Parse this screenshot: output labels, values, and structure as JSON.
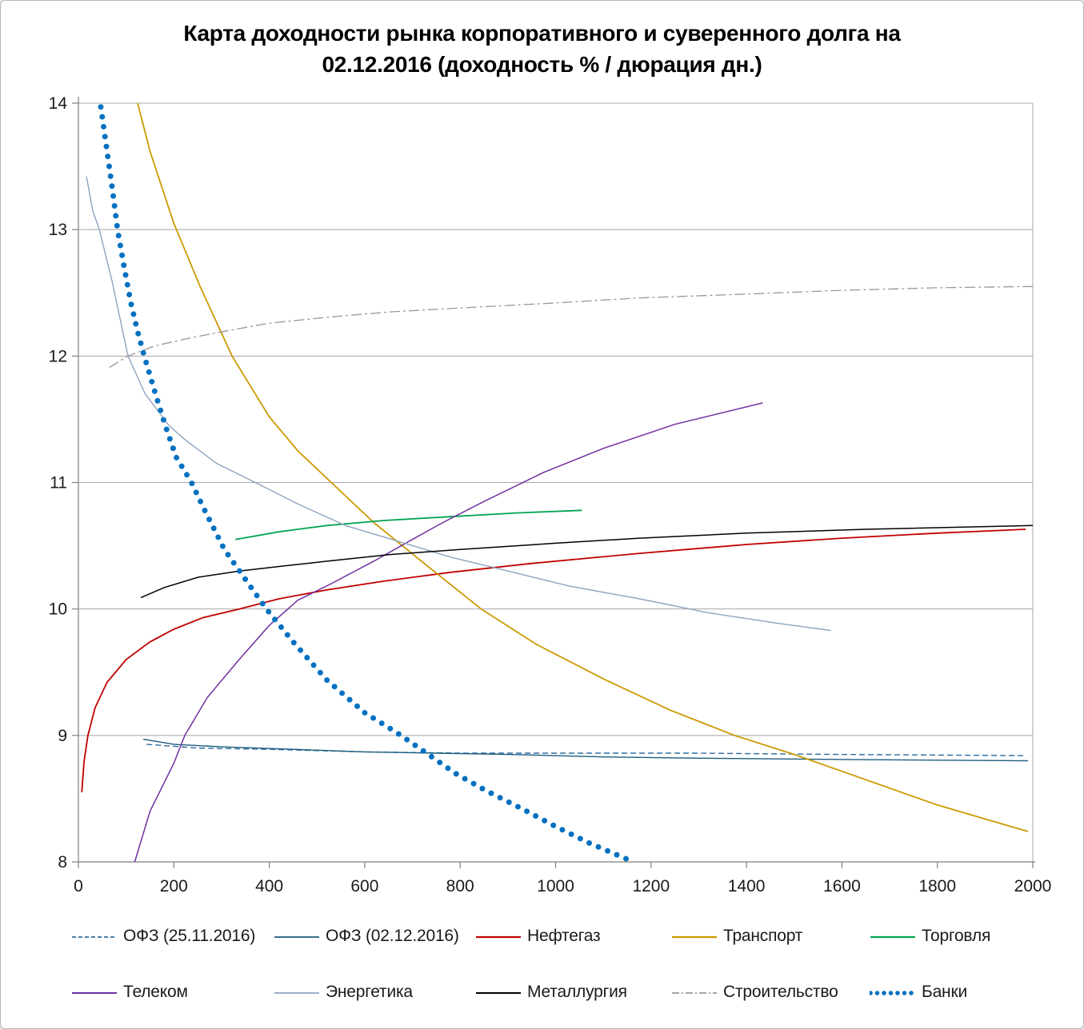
{
  "title": {
    "line1": "Карта доходности рынка корпоративного и суверенного долга на",
    "line2": "02.12.2016 (доходность % / дюрация дн.)"
  },
  "chart_data": {
    "type": "line",
    "title": "Карта доходности рынка корпоративного и суверенного долга на 02.12.2016 (доходность % / дюрация дн.)",
    "xlabel": "",
    "ylabel": "",
    "grid": "horizontal-major",
    "legend_position": "bottom",
    "x_axis": {
      "min": 0,
      "max": 2000,
      "ticks": [
        0,
        200,
        400,
        600,
        800,
        1000,
        1200,
        1400,
        1600,
        1800,
        2000
      ]
    },
    "y_axis": {
      "min": 8,
      "max": 14,
      "ticks": [
        8,
        9,
        10,
        11,
        12,
        13,
        14
      ]
    },
    "colors": {
      "grid": "#a8a8a8",
      "axis": "#7f7f7f",
      "tick_text": "#1a1a1a"
    },
    "series": [
      {
        "id": "ofz-25-11-2016",
        "name": "ОФЗ (25.11.2016)",
        "color": "#2e6c9e",
        "style": "dashed",
        "width": 1.4,
        "points": [
          [
            143,
            8.93
          ],
          [
            250,
            8.9
          ],
          [
            400,
            8.89
          ],
          [
            600,
            8.87
          ],
          [
            800,
            8.86
          ],
          [
            1000,
            8.86
          ],
          [
            1300,
            8.86
          ],
          [
            1600,
            8.85
          ],
          [
            1985,
            8.84
          ]
        ]
      },
      {
        "id": "ofz-02-12-2016",
        "name": "ОФЗ (02.12.2016)",
        "color": "#1d5c7f",
        "style": "solid",
        "width": 1.4,
        "points": [
          [
            136,
            8.97
          ],
          [
            200,
            8.93
          ],
          [
            300,
            8.91
          ],
          [
            450,
            8.89
          ],
          [
            600,
            8.87
          ],
          [
            750,
            8.86
          ],
          [
            900,
            8.85
          ],
          [
            1100,
            8.83
          ],
          [
            1300,
            8.82
          ],
          [
            1600,
            8.81
          ],
          [
            1990,
            8.8
          ]
        ]
      },
      {
        "id": "neftegaz",
        "name": "Нефтегаз",
        "color": "#c00000",
        "style": "solid",
        "width": 1.8,
        "points": [
          [
            7,
            8.55
          ],
          [
            12,
            8.8
          ],
          [
            20,
            9.0
          ],
          [
            35,
            9.22
          ],
          [
            60,
            9.42
          ],
          [
            100,
            9.6
          ],
          [
            150,
            9.74
          ],
          [
            200,
            9.84
          ],
          [
            260,
            9.93
          ],
          [
            337,
            10.0
          ],
          [
            420,
            10.08
          ],
          [
            520,
            10.15
          ],
          [
            640,
            10.22
          ],
          [
            780,
            10.29
          ],
          [
            950,
            10.36
          ],
          [
            1176,
            10.44
          ],
          [
            1400,
            10.51
          ],
          [
            1600,
            10.56
          ],
          [
            1800,
            10.6
          ],
          [
            1985,
            10.63
          ]
        ]
      },
      {
        "id": "transport",
        "name": "Транспорт",
        "color": "#cc9900",
        "style": "solid",
        "width": 1.8,
        "points": [
          [
            124,
            14.0
          ],
          [
            150,
            13.62
          ],
          [
            200,
            13.05
          ],
          [
            255,
            12.55
          ],
          [
            322,
            12.0
          ],
          [
            400,
            11.52
          ],
          [
            460,
            11.25
          ],
          [
            530,
            11.0
          ],
          [
            620,
            10.68
          ],
          [
            728,
            10.35
          ],
          [
            844,
            10.0
          ],
          [
            960,
            9.72
          ],
          [
            1104,
            9.44
          ],
          [
            1240,
            9.2
          ],
          [
            1375,
            9.0
          ],
          [
            1500,
            8.85
          ],
          [
            1650,
            8.65
          ],
          [
            1800,
            8.45
          ],
          [
            1990,
            8.24
          ]
        ]
      },
      {
        "id": "torgovlya",
        "name": "Торговля",
        "color": "#00a550",
        "style": "solid",
        "width": 1.8,
        "points": [
          [
            329,
            10.55
          ],
          [
            420,
            10.61
          ],
          [
            520,
            10.66
          ],
          [
            640,
            10.7
          ],
          [
            780,
            10.73
          ],
          [
            920,
            10.76
          ],
          [
            1055,
            10.78
          ]
        ]
      },
      {
        "id": "telekom",
        "name": "Телеком",
        "color": "#7030a0",
        "style": "solid",
        "width": 1.5,
        "points": [
          [
            118,
            8.0
          ],
          [
            150,
            8.4
          ],
          [
            200,
            8.78
          ],
          [
            223,
            9.0
          ],
          [
            270,
            9.3
          ],
          [
            337,
            9.6
          ],
          [
            400,
            9.87
          ],
          [
            460,
            10.07
          ],
          [
            530,
            10.2
          ],
          [
            620,
            10.38
          ],
          [
            700,
            10.55
          ],
          [
            762,
            10.68
          ],
          [
            850,
            10.85
          ],
          [
            975,
            11.08
          ],
          [
            1100,
            11.27
          ],
          [
            1250,
            11.46
          ],
          [
            1434,
            11.63
          ]
        ]
      },
      {
        "id": "energetika",
        "name": "Энергетика",
        "color": "#8ea4c1",
        "style": "solid",
        "width": 1.4,
        "points": [
          [
            17,
            13.42
          ],
          [
            30,
            13.15
          ],
          [
            44,
            13.0
          ],
          [
            70,
            12.6
          ],
          [
            104,
            12.0
          ],
          [
            140,
            11.7
          ],
          [
            190,
            11.45
          ],
          [
            223,
            11.34
          ],
          [
            290,
            11.15
          ],
          [
            371,
            11.0
          ],
          [
            460,
            10.83
          ],
          [
            560,
            10.66
          ],
          [
            666,
            10.54
          ],
          [
            780,
            10.41
          ],
          [
            900,
            10.3
          ],
          [
            1030,
            10.18
          ],
          [
            1176,
            10.08
          ],
          [
            1320,
            9.97
          ],
          [
            1460,
            9.89
          ],
          [
            1577,
            9.83
          ]
        ]
      },
      {
        "id": "metallurgiya",
        "name": "Металлургия",
        "color": "#000000",
        "style": "solid",
        "width": 1.5,
        "points": [
          [
            131,
            10.09
          ],
          [
            180,
            10.17
          ],
          [
            250,
            10.25
          ],
          [
            337,
            10.3
          ],
          [
            430,
            10.34
          ],
          [
            525,
            10.38
          ],
          [
            650,
            10.43
          ],
          [
            800,
            10.47
          ],
          [
            1000,
            10.52
          ],
          [
            1176,
            10.56
          ],
          [
            1400,
            10.6
          ],
          [
            1650,
            10.63
          ],
          [
            2000,
            10.66
          ]
        ]
      },
      {
        "id": "stroitelstvo",
        "name": "Строительство",
        "color": "#999999",
        "style": "dashdot",
        "width": 1.3,
        "points": [
          [
            65,
            11.91
          ],
          [
            104,
            12.0
          ],
          [
            160,
            12.08
          ],
          [
            230,
            12.14
          ],
          [
            297,
            12.19
          ],
          [
            400,
            12.26
          ],
          [
            530,
            12.31
          ],
          [
            656,
            12.35
          ],
          [
            800,
            12.38
          ],
          [
            1000,
            12.42
          ],
          [
            1176,
            12.46
          ],
          [
            1400,
            12.49
          ],
          [
            1600,
            12.52
          ],
          [
            1800,
            12.54
          ],
          [
            2000,
            12.55
          ]
        ]
      },
      {
        "id": "banki",
        "name": "Банки",
        "color": "#0070c0",
        "style": "dotted",
        "width": 7,
        "points": [
          [
            47,
            13.97
          ],
          [
            60,
            13.62
          ],
          [
            72,
            13.3
          ],
          [
            82,
            13.0
          ],
          [
            95,
            12.72
          ],
          [
            110,
            12.42
          ],
          [
            125,
            12.18
          ],
          [
            138,
            12.0
          ],
          [
            160,
            11.72
          ],
          [
            182,
            11.45
          ],
          [
            205,
            11.2
          ],
          [
            237,
            11.0
          ],
          [
            262,
            10.8
          ],
          [
            306,
            10.47
          ],
          [
            345,
            10.26
          ],
          [
            394,
            10.0
          ],
          [
            450,
            9.74
          ],
          [
            520,
            9.44
          ],
          [
            600,
            9.18
          ],
          [
            668,
            9.02
          ],
          [
            718,
            8.89
          ],
          [
            790,
            8.7
          ],
          [
            856,
            8.56
          ],
          [
            930,
            8.42
          ],
          [
            1000,
            8.28
          ],
          [
            1070,
            8.15
          ],
          [
            1163,
            8.0
          ]
        ]
      }
    ]
  }
}
